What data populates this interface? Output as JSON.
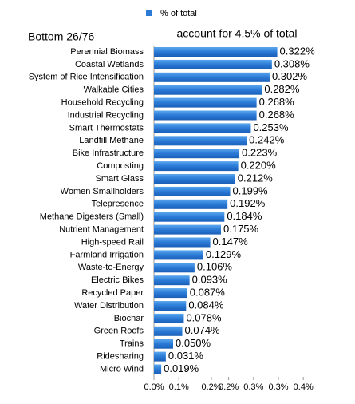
{
  "chart_data": {
    "type": "barh",
    "title": "Bottom 26/76",
    "subtitle": "account for 4.5% of total",
    "legend": "top",
    "series": [
      {
        "name": "% of total",
        "color": "#2a7ad6",
        "values": [
          0.322,
          0.308,
          0.302,
          0.282,
          0.268,
          0.268,
          0.253,
          0.242,
          0.223,
          0.22,
          0.212,
          0.199,
          0.192,
          0.184,
          0.175,
          0.147,
          0.129,
          0.106,
          0.093,
          0.087,
          0.084,
          0.078,
          0.074,
          0.05,
          0.031,
          0.019
        ],
        "value_labels": [
          "0.322%",
          "0.308%",
          "0.302%",
          "0.282%",
          "0.268%",
          "0.268%",
          "0.253%",
          "0.242%",
          "0.223%",
          "0.220%",
          "0.212%",
          "0.199%",
          "0.192%",
          "0.184%",
          "0.175%",
          "0.147%",
          "0.129%",
          "0.106%",
          "0.093%",
          "0.087%",
          "0.084%",
          "0.078%",
          "0.074%",
          "0.050%",
          "0.031%",
          "0.019%"
        ]
      }
    ],
    "categories": [
      "Perennial Biomass",
      "Coastal Wetlands",
      "System of Rice Intensification",
      "Walkable Cities",
      "Household Recycling",
      "Industrial Recycling",
      "Smart Thermostats",
      "Landfill Methane",
      "Bike Infrastructure",
      "Composting",
      "Smart Glass",
      "Women Smallholders",
      "Telepresence",
      "Methane Digesters (Small)",
      "Nutrient Management",
      "High-speed Rail",
      "Farmland Irrigation",
      "Waste-to-Energy",
      "Electric Bikes",
      "Recycled Paper",
      "Water Distribution",
      "Biochar",
      "Green Roofs",
      "Trains",
      "Ridesharing",
      "Micro Wind"
    ],
    "xlim": [
      0,
      0.4
    ],
    "xticks": [
      {
        "value": 0,
        "label": "0.0%"
      },
      {
        "value": 0.065,
        "label": "0.1%"
      },
      {
        "value": 0.15,
        "label": "0.2%"
      },
      {
        "value": 0.195,
        "label": "0.2%"
      },
      {
        "value": 0.26,
        "label": "0.3%"
      },
      {
        "value": 0.325,
        "label": "0.3%"
      },
      {
        "value": 0.39,
        "label": "0.4%"
      }
    ]
  }
}
